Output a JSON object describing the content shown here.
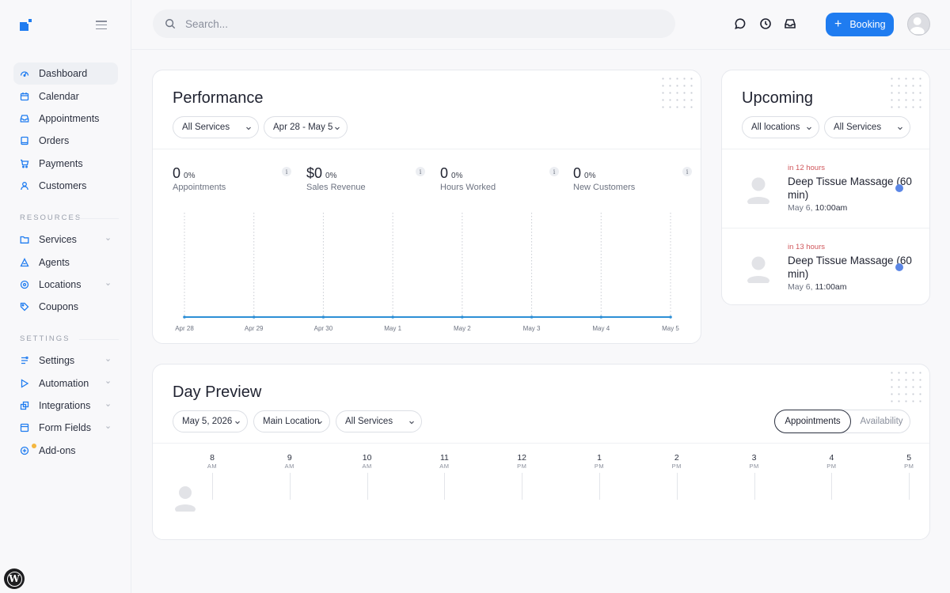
{
  "sidebar": {
    "main_items": [
      {
        "label": "Dashboard",
        "icon": "dashboard-icon",
        "active": true
      },
      {
        "label": "Calendar",
        "icon": "calendar-icon"
      },
      {
        "label": "Appointments",
        "icon": "inbox-icon"
      },
      {
        "label": "Orders",
        "icon": "book-icon"
      },
      {
        "label": "Payments",
        "icon": "cart-icon"
      },
      {
        "label": "Customers",
        "icon": "user-icon"
      }
    ],
    "resources_label": "RESOURCES",
    "resource_items": [
      {
        "label": "Services",
        "icon": "folder-icon",
        "has_chevron": true
      },
      {
        "label": "Agents",
        "icon": "agent-icon"
      },
      {
        "label": "Locations",
        "icon": "pin-icon",
        "has_chevron": true
      },
      {
        "label": "Coupons",
        "icon": "tag-icon"
      }
    ],
    "settings_label": "SETTINGS",
    "settings_items": [
      {
        "label": "Settings",
        "icon": "gear-icon",
        "has_chevron": true
      },
      {
        "label": "Automation",
        "icon": "play-icon",
        "has_chevron": true
      },
      {
        "label": "Integrations",
        "icon": "integrations-icon",
        "has_chevron": true
      },
      {
        "label": "Form Fields",
        "icon": "form-icon",
        "has_chevron": true
      },
      {
        "label": "Add-ons",
        "icon": "addon-icon"
      }
    ]
  },
  "topbar": {
    "search_placeholder": "Search...",
    "booking_label": "Booking"
  },
  "colors": {
    "accent": "#1f7cf0",
    "chart_line": "#2d8fd6",
    "urgent": "#d0565b",
    "status_dot": "#5b86e5"
  },
  "performance": {
    "title": "Performance",
    "service_filter": "All Services",
    "date_range": "Apr 28 - May 5",
    "stats": [
      {
        "value": "0",
        "pct": "0%",
        "label": "Appointments"
      },
      {
        "value": "$0",
        "pct": "0%",
        "label": "Sales Revenue"
      },
      {
        "value": "0",
        "pct": "0%",
        "label": "Hours Worked"
      },
      {
        "value": "0",
        "pct": "0%",
        "label": "New Customers"
      }
    ],
    "info_glyph": "i"
  },
  "chart_data": {
    "type": "line",
    "x": [
      "Apr 28",
      "Apr 29",
      "Apr 30",
      "May 1",
      "May 2",
      "May 3",
      "May 4",
      "May 5"
    ],
    "series": [
      {
        "values": [
          0,
          0,
          0,
          0,
          0,
          0,
          0,
          0
        ]
      }
    ],
    "title": "",
    "xlabel": "",
    "ylabel": "",
    "grid": "vertical dotted"
  },
  "upcoming": {
    "title": "Upcoming",
    "location_filter": "All locations",
    "service_filter": "All Services",
    "items": [
      {
        "when": "in 12 hours",
        "service": "Deep Tissue Massage (60 min)",
        "day": "May 6,",
        "time": "10:00am"
      },
      {
        "when": "in 13 hours",
        "service": "Deep Tissue Massage (60 min)",
        "day": "May 6,",
        "time": "11:00am"
      }
    ]
  },
  "day_preview": {
    "title": "Day Preview",
    "date": "May 5, 2026",
    "location": "Main Location",
    "service": "All Services",
    "toggle_on": "Appointments",
    "toggle_off": "Availability",
    "hours": [
      {
        "h": "8",
        "ap": "AM"
      },
      {
        "h": "9",
        "ap": "AM"
      },
      {
        "h": "10",
        "ap": "AM"
      },
      {
        "h": "11",
        "ap": "AM"
      },
      {
        "h": "12",
        "ap": "PM"
      },
      {
        "h": "1",
        "ap": "PM"
      },
      {
        "h": "2",
        "ap": "PM"
      },
      {
        "h": "3",
        "ap": "PM"
      },
      {
        "h": "4",
        "ap": "PM"
      },
      {
        "h": "5",
        "ap": "PM"
      }
    ]
  },
  "wp_badge": "W"
}
